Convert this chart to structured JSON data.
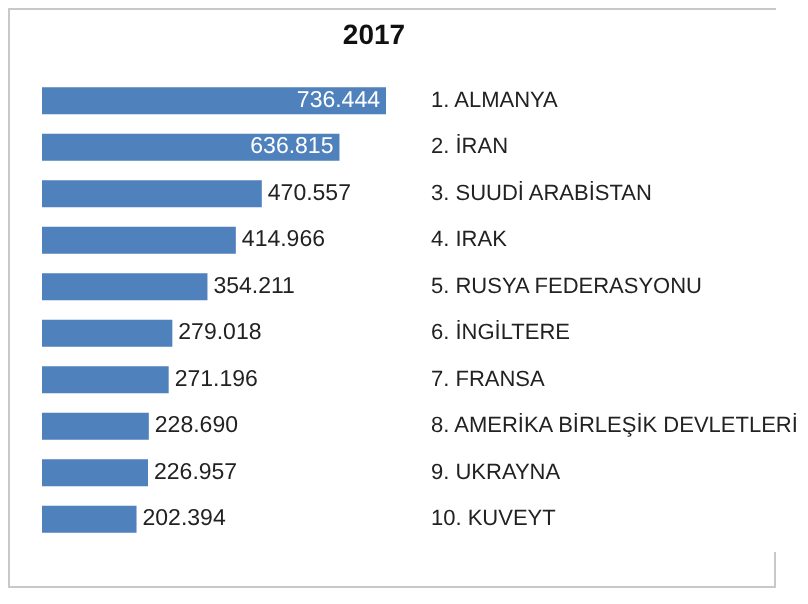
{
  "chart_data": {
    "type": "bar",
    "orientation": "horizontal",
    "title": "2017",
    "categories": [
      "1. ALMANYA",
      "2. İRAN",
      "3. SUUDİ ARABİSTAN",
      "4. IRAK",
      "5. RUSYA FEDERASYONU",
      "6. İNGİLTERE",
      "7. FRANSA",
      "8. AMERİKA BİRLEŞİK DEVLETLERİ",
      "9. UKRAYNA",
      "10. KUVEYT"
    ],
    "values": [
      736444,
      636815,
      470557,
      414966,
      354211,
      279018,
      271196,
      228690,
      226957,
      202394
    ],
    "value_labels": [
      "736.444",
      "636.815",
      "470.557",
      "414.966",
      "354.211",
      "279.018",
      "271.196",
      "228.690",
      "226.957",
      "202.394"
    ],
    "color": "#4f81bd"
  }
}
